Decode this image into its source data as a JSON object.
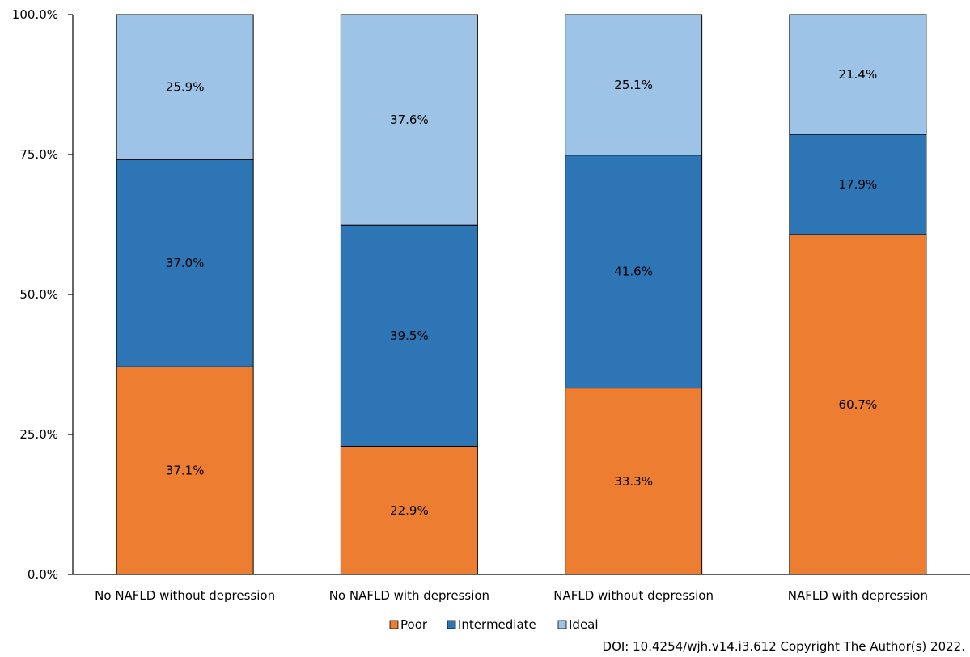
{
  "chart_data": {
    "type": "bar",
    "stacked": true,
    "categories": [
      "No NAFLD without depression",
      "No NAFLD with depression",
      "NAFLD without depression",
      "NAFLD with depression"
    ],
    "series": [
      {
        "name": "Poor",
        "color": "#ED7D31",
        "values": [
          37.1,
          22.9,
          33.3,
          60.7
        ],
        "labels": [
          "37.1%",
          "22.9%",
          "33.3%",
          "60.7%"
        ]
      },
      {
        "name": "Intermediate",
        "color": "#2E75B6",
        "values": [
          37.0,
          39.5,
          41.6,
          17.9
        ],
        "labels": [
          "37.0%",
          "39.5%",
          "41.6%",
          "17.9%"
        ]
      },
      {
        "name": "Ideal",
        "color": "#9DC3E6",
        "values": [
          25.9,
          37.6,
          25.1,
          21.4
        ],
        "labels": [
          "25.9%",
          "37.6%",
          "25.1%",
          "21.4%"
        ]
      }
    ],
    "yticks": [
      0,
      25,
      50,
      75,
      100
    ],
    "ytick_labels": [
      "0.0%",
      "25.0%",
      "50.0%",
      "75.0%",
      "100.0%"
    ],
    "ylim": [
      0,
      100
    ],
    "legend_position": "bottom",
    "grid": false
  },
  "credit": "DOI: 10.4254/wjh.v14.i3.612 Copyright The Author(s) 2022."
}
